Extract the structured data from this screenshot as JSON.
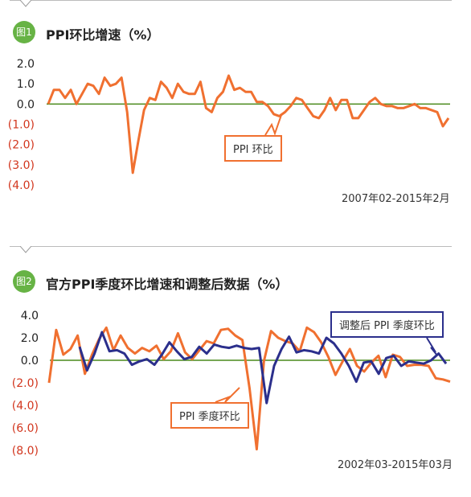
{
  "colors": {
    "orange": "#f07030",
    "blue": "#2b2f8c",
    "green": "#67b345",
    "zero_line": "#4a8a1c",
    "neg_tick": "#d2361e",
    "pos_tick": "#222222"
  },
  "header1": {
    "badge": "图1",
    "title": "PPI环比增速（%）"
  },
  "header2": {
    "badge": "图2",
    "title": "官方PPI季度环比增速和调整后数据（%）"
  },
  "chart_data": [
    {
      "type": "line",
      "title": "PPI环比增速（%）",
      "date_range": "2007年02-2015年2月",
      "ylim": [
        -4.0,
        2.0
      ],
      "yticks": [
        2.0,
        1.0,
        0.0,
        -1.0,
        -2.0,
        -3.0,
        -4.0
      ],
      "ytick_labels": [
        "2.0",
        "1.0",
        "0.0",
        "(1.0)",
        "(2.0)",
        "(3.0)",
        "(4.0)"
      ],
      "series": [
        {
          "name": "PPI 环比",
          "color": "#f07030",
          "values": [
            0.0,
            0.7,
            0.7,
            0.3,
            0.7,
            0.0,
            0.5,
            1.0,
            0.9,
            0.5,
            1.3,
            0.9,
            1.0,
            1.3,
            -0.4,
            -3.4,
            -1.8,
            -0.3,
            0.3,
            0.2,
            1.1,
            0.8,
            0.3,
            1.0,
            0.6,
            0.5,
            0.5,
            1.1,
            -0.2,
            -0.4,
            0.3,
            0.6,
            1.4,
            0.7,
            0.8,
            0.6,
            0.6,
            0.1,
            0.1,
            -0.1,
            -0.5,
            -0.6,
            -0.4,
            -0.1,
            0.3,
            0.2,
            -0.2,
            -0.6,
            -0.7,
            -0.3,
            0.3,
            -0.3,
            0.2,
            0.2,
            -0.7,
            -0.7,
            -0.3,
            0.1,
            0.3,
            0.0,
            -0.1,
            -0.1,
            -0.2,
            -0.2,
            -0.1,
            0.0,
            -0.2,
            -0.2,
            -0.3,
            -0.4,
            -1.1,
            -0.7
          ]
        }
      ],
      "callouts": [
        {
          "label": "PPI 环比",
          "series": "PPI 环比"
        }
      ]
    },
    {
      "type": "line",
      "title": "官方PPI季度环比增速和调整后数据（%）",
      "date_range": "2002年03-2015年03月",
      "ylim": [
        -8.0,
        4.0
      ],
      "yticks": [
        4.0,
        2.0,
        0.0,
        -2.0,
        -4.0,
        -6.0,
        -8.0
      ],
      "ytick_labels": [
        "4.0",
        "2.0",
        "0.0",
        "(2.0)",
        "(4.0)",
        "(6.0)",
        "(8.0)"
      ],
      "series": [
        {
          "name": "PPI 季度环比",
          "color": "#f07030",
          "values": [
            -2.0,
            2.7,
            0.5,
            1.0,
            2.2,
            -1.2,
            0.5,
            1.9,
            2.9,
            0.9,
            2.2,
            1.1,
            0.6,
            1.1,
            0.8,
            1.3,
            0.1,
            0.8,
            2.4,
            0.7,
            0.1,
            0.9,
            1.7,
            1.5,
            2.7,
            2.8,
            2.2,
            1.8,
            -2.5,
            -7.9,
            -0.1,
            2.6,
            2.0,
            1.7,
            1.5,
            0.8,
            2.9,
            2.5,
            1.6,
            0.3,
            -1.3,
            -0.1,
            1.0,
            -0.5,
            -1.0,
            -0.2,
            0.4,
            -1.5,
            0.5,
            0.3,
            -0.5,
            -0.4,
            -0.4,
            -0.5,
            -1.6,
            -1.7,
            -1.9
          ]
        },
        {
          "name": "调整后 PPI 季度环比",
          "color": "#2b2f8c",
          "values": [
            1.2,
            -0.9,
            0.6,
            2.5,
            0.8,
            0.9,
            0.6,
            -0.4,
            -0.1,
            0.1,
            -0.4,
            0.5,
            1.6,
            0.8,
            0.1,
            0.3,
            1.2,
            0.6,
            1.4,
            1.2,
            1.1,
            1.3,
            1.1,
            1.0,
            1.1,
            -3.8,
            -0.5,
            1.0,
            2.1,
            0.7,
            0.9,
            0.8,
            0.6,
            2.0,
            1.5,
            0.6,
            -0.5,
            -1.9,
            -0.2,
            -0.1,
            -1.2,
            0.2,
            0.4,
            -0.5,
            -0.1,
            -0.2,
            -0.3,
            0.0,
            0.6,
            -0.3
          ]
        }
      ],
      "callouts": [
        {
          "label": "PPI 季度环比",
          "series": "PPI 季度环比"
        },
        {
          "label": "调整后 PPI 季度环比",
          "series": "调整后 PPI 季度环比"
        }
      ]
    }
  ]
}
